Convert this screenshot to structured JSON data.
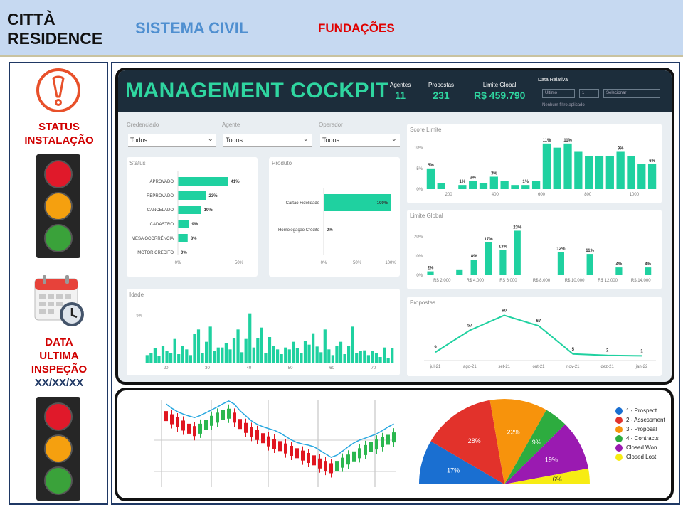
{
  "header": {
    "company_line1": "CITTÀ",
    "company_line2": "RESIDENCE",
    "system": "SISTEMA CIVIL",
    "section": "FUNDAÇÕES"
  },
  "sidebar": {
    "status_line1": "STATUS",
    "status_line2": "INSTALAÇÃO",
    "data_line1": "DATA",
    "data_line2": "ULTIMA",
    "data_line3": "INSPEÇÃO",
    "data_value": "XX/XX/XX",
    "light_colors": {
      "red": "#e0192a",
      "amber": "#f5a00f",
      "green": "#3aa23a"
    }
  },
  "cockpit": {
    "title": "MANAGEMENT COCKPIT",
    "kpis": [
      {
        "label": "Agentes",
        "value": "11"
      },
      {
        "label": "Propostas",
        "value": "231"
      },
      {
        "label": "Limite Global",
        "value": "R$ 459.790"
      }
    ],
    "date_filter": {
      "label": "Data Relativa",
      "mode": "Último",
      "qty": "1",
      "unit": "Selecionar",
      "note": "Nenhum filtro aplicado"
    },
    "filters": [
      {
        "label": "Credenciado",
        "value": "Todos"
      },
      {
        "label": "Agente",
        "value": "Todos"
      },
      {
        "label": "Operador",
        "value": "Todos"
      }
    ],
    "accent": "#1fd1a0"
  },
  "chart_data": [
    {
      "type": "bar",
      "orientation": "horizontal",
      "title": "Status",
      "categories": [
        "APROVADO",
        "REPROVADO",
        "CANCELADO",
        "CADASTRO",
        "MESA OCORRÊNCIA",
        "MOTOR CRÉDITO"
      ],
      "values": [
        41,
        23,
        19,
        9,
        8,
        0
      ],
      "value_labels": [
        "41%",
        "23%",
        "19%",
        "9%",
        "8%",
        "0%"
      ],
      "xticks": [
        "0%",
        "50%"
      ],
      "xlim": [
        0,
        50
      ]
    },
    {
      "type": "bar",
      "orientation": "horizontal",
      "title": "Produto",
      "categories": [
        "Cartão Fidelidade",
        "Homologação Crédito"
      ],
      "values": [
        100,
        0
      ],
      "value_labels": [
        "100%",
        "0%"
      ],
      "xticks": [
        "0%",
        "50%",
        "100%"
      ],
      "xlim": [
        0,
        100
      ]
    },
    {
      "type": "bar",
      "title": "Score Limite",
      "yticks": [
        "0%",
        "5%",
        "10%"
      ],
      "ylim": [
        0,
        12
      ],
      "xticks": [
        "200",
        "400",
        "600",
        "800",
        "1000"
      ],
      "values": [
        5,
        1.5,
        0,
        1,
        2,
        1.5,
        3,
        2,
        1,
        1,
        2,
        11,
        10,
        11,
        9,
        8,
        8,
        8,
        9,
        8,
        6,
        6
      ],
      "value_labels": {
        "0": "5%",
        "3": "1%",
        "4": "2%",
        "6": "3%",
        "9": "1%",
        "11": "11%",
        "13": "11%",
        "18": "9%",
        "21": "6%"
      }
    },
    {
      "type": "bar",
      "title": "Limite Global",
      "yticks": [
        "0%",
        "10%",
        "20%"
      ],
      "ylim": [
        0,
        25
      ],
      "xticks": [
        "R$ 2.000",
        "R$ 4.000",
        "R$ 6.000",
        "R$ 8.000",
        "R$ 10.000",
        "R$ 12.000",
        "R$ 14.000"
      ],
      "values": [
        2,
        0,
        3,
        8,
        17,
        13,
        23,
        0,
        0,
        12,
        0,
        11,
        0,
        4,
        0,
        4
      ],
      "value_labels": {
        "0": "2%",
        "3": "8%",
        "4": "17%",
        "5": "13%",
        "6": "23%",
        "9": "12%",
        "11": "11%",
        "13": "4%",
        "15": "4%"
      }
    },
    {
      "type": "bar",
      "title": "Idade",
      "yticks": [
        "5%"
      ],
      "ylim": [
        0,
        6
      ],
      "xticks": [
        "20",
        "30",
        "40",
        "50",
        "60",
        "70"
      ],
      "values": [
        0.8,
        1.0,
        1.5,
        0.7,
        1.8,
        1.2,
        1.0,
        2.5,
        0.9,
        1.8,
        1.4,
        0.8,
        3.0,
        3.5,
        1.0,
        2.2,
        3.8,
        1.2,
        1.6,
        1.6,
        2.1,
        1.4,
        2.6,
        3.5,
        1.1,
        2.5,
        5.2,
        1.6,
        2.6,
        3.7,
        1.0,
        2.7,
        1.8,
        1.4,
        0.9,
        1.6,
        1.4,
        2.2,
        1.5,
        1.0,
        2.3,
        1.9,
        3.1,
        1.7,
        1.1,
        3.5,
        1.4,
        0.8,
        1.8,
        2.2,
        0.9,
        1.8,
        3.8,
        1.0,
        1.2,
        1.3,
        0.8,
        1.2,
        1.0,
        0.6,
        1.6,
        0.5,
        1.5
      ]
    },
    {
      "type": "line",
      "title": "Propostas",
      "x": [
        "jul-21",
        "ago-21",
        "set-21",
        "out-21",
        "nov-21",
        "dez-21",
        "jan-22"
      ],
      "values": [
        9,
        57,
        90,
        67,
        5,
        2,
        1
      ],
      "ylim": [
        0,
        100
      ]
    },
    {
      "type": "scatter",
      "subtype": "candlestick",
      "values": [
        8,
        7.6,
        7.2,
        6.8,
        6.4,
        6.1,
        6.4,
        6.9,
        7.4,
        7.8,
        8.1,
        8.3,
        7.8,
        7.0,
        6.5,
        6.0,
        5.6,
        5.2,
        4.8,
        4.5,
        4.2,
        3.9,
        3.6,
        3.3,
        3.0,
        2.7,
        2.4,
        2.0,
        1.7,
        1.4,
        1.7,
        2.1,
        2.5,
        2.9,
        3.3,
        3.7,
        4.1,
        4.4,
        4.7,
        5.0,
        5.3
      ],
      "colors": {
        "up": "#2bb74f",
        "down": "#e01620",
        "trend": "#29a8e0"
      }
    },
    {
      "type": "pie",
      "subtype": "semicircle",
      "categories": [
        "1 - Prospect",
        "2 - Assessment",
        "3 - Proposal",
        "4 - Contracts",
        "Closed Won",
        "Closed Lost"
      ],
      "values": [
        17,
        28,
        22,
        9,
        19,
        6
      ],
      "value_labels": [
        "17%",
        "28%",
        "22%",
        "9%",
        "19%",
        "6%"
      ],
      "colors": [
        "#1a6fd1",
        "#e2322b",
        "#f7930c",
        "#2dac3f",
        "#9a1ab1",
        "#f7ec13"
      ]
    }
  ]
}
